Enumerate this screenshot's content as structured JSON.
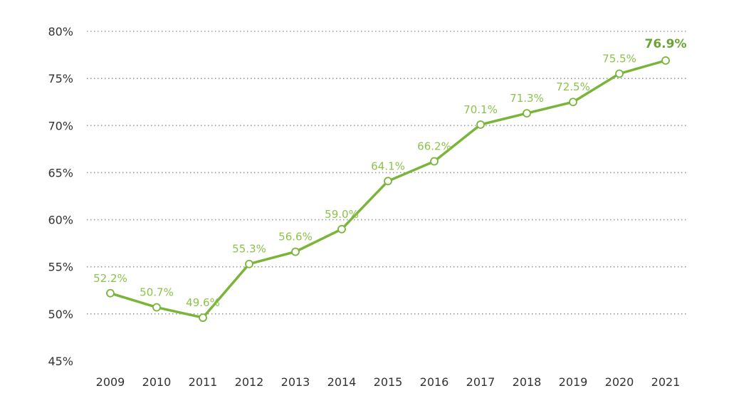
{
  "chart_data": {
    "type": "line",
    "title": "",
    "xlabel": "",
    "ylabel": "",
    "categories": [
      "2009",
      "2010",
      "2011",
      "2012",
      "2013",
      "2014",
      "2015",
      "2016",
      "2017",
      "2018",
      "2019",
      "2020",
      "2021"
    ],
    "values": [
      52.2,
      50.7,
      49.6,
      55.3,
      56.6,
      59.0,
      64.1,
      66.2,
      70.1,
      71.3,
      72.5,
      75.5,
      76.9
    ],
    "data_labels": [
      "52.2%",
      "50.7%",
      "49.6%",
      "55.3%",
      "56.6%",
      "59.0%",
      "64.1%",
      "66.2%",
      "70.1%",
      "71.3%",
      "72.5%",
      "75.5%",
      "76.9%"
    ],
    "yticks": [
      45,
      50,
      55,
      60,
      65,
      70,
      75,
      80
    ],
    "ytick_labels": [
      "45%",
      "50%",
      "55%",
      "60%",
      "65%",
      "70%",
      "75%",
      "80%"
    ],
    "ylim": [
      45,
      80
    ],
    "grid": true,
    "legend": "none",
    "colors": {
      "line": "#7ab539",
      "label": "#8dc24a",
      "label_highlight": "#6aa533",
      "grid": "#9a9a9a",
      "text": "#333333"
    }
  }
}
